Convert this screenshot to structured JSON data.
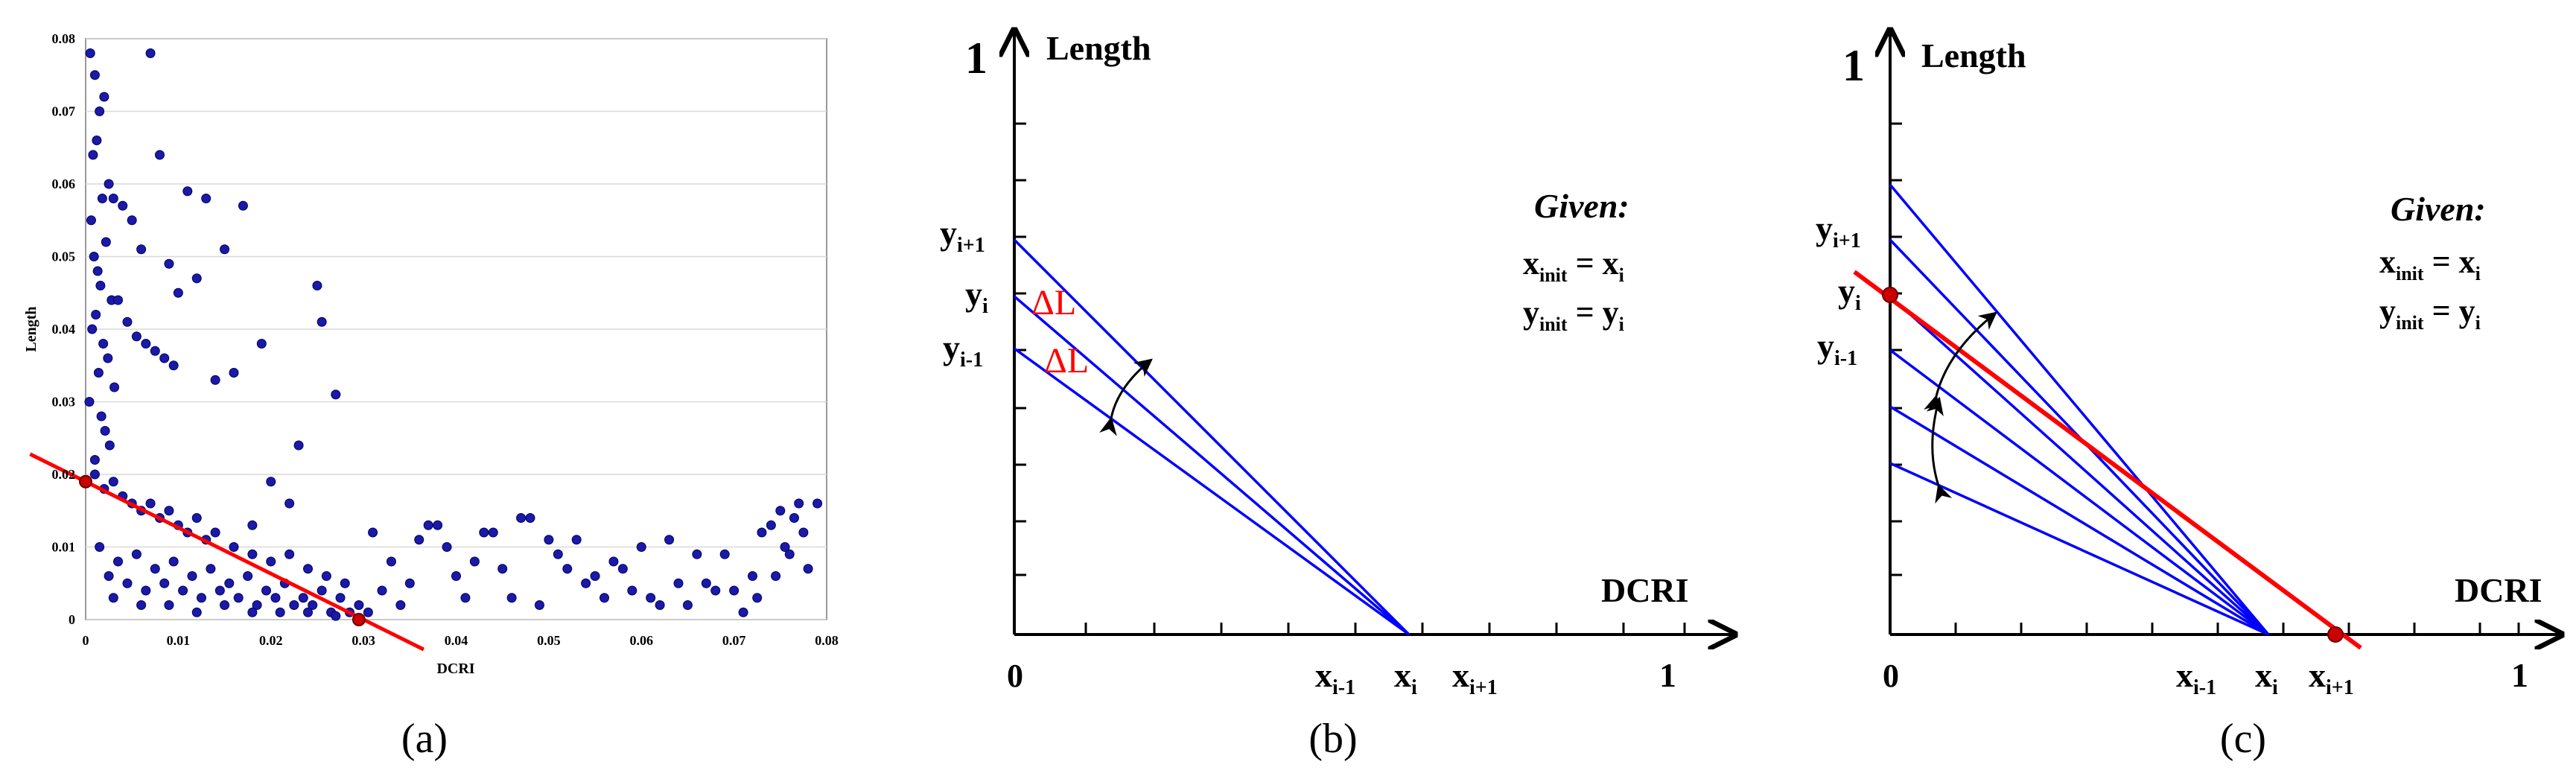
{
  "colors": {
    "points": "#1a1aa6",
    "point_edge": "#000066",
    "blue_line": "#0000ff",
    "red_line": "#ff0000",
    "red_point": "#cc0000",
    "axis": "#000000",
    "grid": "#d9d9d9",
    "label_red": "#ff0000"
  },
  "panels": {
    "a": {
      "caption": "(a)",
      "xlabel": "DCRI",
      "ylabel": "Length"
    },
    "b": {
      "caption": "(b)",
      "y_axis": {
        "label": "Length",
        "max_label": "1",
        "ticks": [
          {
            "base": "y",
            "sub": "i+1"
          },
          {
            "base": "y",
            "sub": "i"
          },
          {
            "base": "y",
            "sub": "i-1"
          }
        ]
      },
      "x_axis": {
        "label": "DCRI",
        "origin_label": "0",
        "max_label": "1",
        "ticks": [
          {
            "base": "x",
            "sub": "i-1"
          },
          {
            "base": "x",
            "sub": "i"
          },
          {
            "base": "x",
            "sub": "i+1"
          }
        ]
      },
      "delta_labels": [
        "ΔL",
        "ΔL"
      ],
      "given": {
        "title": "Given:",
        "lines": [
          {
            "lhs_base": "x",
            "lhs_sub": "init",
            "rhs_base": "x",
            "rhs_sub": "i"
          },
          {
            "lhs_base": "y",
            "lhs_sub": "init",
            "rhs_base": "y",
            "rhs_sub": "i"
          }
        ]
      }
    },
    "c": {
      "caption": "(c)",
      "y_axis": {
        "label": "Length",
        "max_label": "1",
        "ticks": [
          {
            "base": "y",
            "sub": "i+1"
          },
          {
            "base": "y",
            "sub": "i"
          },
          {
            "base": "y",
            "sub": "i-1"
          }
        ]
      },
      "x_axis": {
        "label": "DCRI",
        "origin_label": "0",
        "max_label": "1",
        "ticks": [
          {
            "base": "x",
            "sub": "i-1"
          },
          {
            "base": "x",
            "sub": "i"
          },
          {
            "base": "x",
            "sub": "i+1"
          }
        ]
      },
      "given": {
        "title": "Given:",
        "lines": [
          {
            "lhs_base": "x",
            "lhs_sub": "init",
            "rhs_base": "x",
            "rhs_sub": "i"
          },
          {
            "lhs_base": "y",
            "lhs_sub": "init",
            "rhs_base": "y",
            "rhs_sub": "i"
          }
        ]
      }
    }
  },
  "chart_data": [
    {
      "type": "scatter",
      "panel": "a",
      "title": "",
      "xlabel": "DCRI",
      "ylabel": "Length",
      "xlim": [
        0,
        0.08
      ],
      "ylim": [
        0,
        0.08
      ],
      "x_ticks": [
        "0",
        "0.01",
        "0.02",
        "0.03",
        "0.04",
        "0.05",
        "0.06",
        "0.07",
        "0.08"
      ],
      "y_ticks": [
        "0",
        "0.01",
        "0.02",
        "0.03",
        "0.04",
        "0.05",
        "0.06",
        "0.07",
        "0.08"
      ],
      "grid": true,
      "series": [
        {
          "x": [
            0.0005,
            0.001,
            0.0015,
            0.002,
            0.0012,
            0.0008,
            0.0025,
            0.0018,
            0.0006,
            0.0022,
            0.0009,
            0.0013,
            0.0016,
            0.0028,
            0.0011,
            0.0007,
            0.0019,
            0.0024,
            0.0014,
            0.0031,
            0.0004,
            0.0017,
            0.0021,
            0.0026,
            0.001,
            0.007,
            0.003,
            0.004,
            0.005,
            0.006,
            0.008,
            0.009,
            0.011,
            0.013,
            0.017,
            0.015,
            0.012,
            0.01,
            0.0035,
            0.0045,
            0.0055,
            0.0065,
            0.0075,
            0.0085,
            0.0095,
            0.014,
            0.016,
            0.019,
            0.023,
            0.025,
            0.0255,
            0.027,
            0.022,
            0.02,
            0.018,
            0.001,
            0.002,
            0.003,
            0.004,
            0.005,
            0.006,
            0.007,
            0.008,
            0.009,
            0.01,
            0.011,
            0.012,
            0.013,
            0.014,
            0.016,
            0.018,
            0.02,
            0.022,
            0.024,
            0.026,
            0.028,
            0.0015,
            0.0035,
            0.0055,
            0.0075,
            0.0095,
            0.0115,
            0.0135,
            0.0155,
            0.0175,
            0.0195,
            0.0215,
            0.0235,
            0.0255,
            0.0275,
            0.0295,
            0.0025,
            0.0045,
            0.0065,
            0.0085,
            0.0105,
            0.0125,
            0.0145,
            0.0165,
            0.0185,
            0.0205,
            0.0225,
            0.0245,
            0.0265,
            0.0285,
            0.0305,
            0.003,
            0.006,
            0.009,
            0.012,
            0.015,
            0.018,
            0.021,
            0.024,
            0.027,
            0.031,
            0.033,
            0.035,
            0.037,
            0.039,
            0.041,
            0.043,
            0.045,
            0.047,
            0.049,
            0.051,
            0.053,
            0.055,
            0.057,
            0.059,
            0.061,
            0.063,
            0.065,
            0.067,
            0.069,
            0.071,
            0.073,
            0.075,
            0.077,
            0.079,
            0.032,
            0.036,
            0.04,
            0.044,
            0.048,
            0.052,
            0.056,
            0.06,
            0.064,
            0.068,
            0.072,
            0.076,
            0.034,
            0.038,
            0.042,
            0.046,
            0.05,
            0.054,
            0.058,
            0.062,
            0.066,
            0.07,
            0.074,
            0.078,
            0.0775,
            0.0765,
            0.0755,
            0.0745,
            0.0725
          ],
          "y": [
            0.078,
            0.075,
            0.07,
            0.072,
            0.066,
            0.064,
            0.06,
            0.058,
            0.055,
            0.052,
            0.05,
            0.048,
            0.046,
            0.044,
            0.042,
            0.04,
            0.038,
            0.036,
            0.034,
            0.032,
            0.03,
            0.028,
            0.026,
            0.024,
            0.022,
            0.078,
            0.058,
            0.057,
            0.055,
            0.051,
            0.064,
            0.049,
            0.059,
            0.058,
            0.057,
            0.051,
            0.047,
            0.045,
            0.044,
            0.041,
            0.039,
            0.038,
            0.037,
            0.036,
            0.035,
            0.033,
            0.034,
            0.038,
            0.024,
            0.046,
            0.041,
            0.031,
            0.016,
            0.019,
            0.013,
            0.02,
            0.018,
            0.019,
            0.017,
            0.016,
            0.015,
            0.016,
            0.014,
            0.015,
            0.013,
            0.012,
            0.014,
            0.011,
            0.012,
            0.01,
            0.009,
            0.008,
            0.009,
            0.007,
            0.006,
            0.005,
            0.01,
            0.008,
            0.009,
            0.007,
            0.008,
            0.006,
            0.007,
            0.005,
            0.006,
            0.004,
            0.005,
            0.003,
            0.004,
            0.003,
            0.002,
            0.006,
            0.005,
            0.004,
            0.005,
            0.004,
            0.003,
            0.004,
            0.003,
            0.002,
            0.003,
            0.002,
            0.002,
            0.001,
            0.001,
            0.001,
            0.003,
            0.002,
            0.002,
            0.001,
            0.002,
            0.001,
            0.001,
            0.001,
            0.0005,
            0.012,
            0.008,
            0.005,
            0.013,
            0.01,
            0.003,
            0.012,
            0.007,
            0.014,
            0.002,
            0.009,
            0.011,
            0.006,
            0.008,
            0.004,
            0.003,
            0.011,
            0.002,
            0.005,
            0.009,
            0.001,
            0.012,
            0.015,
            0.016,
            0.016,
            0.004,
            0.011,
            0.006,
            0.012,
            0.014,
            0.007,
            0.003,
            0.01,
            0.005,
            0.004,
            0.006,
            0.009,
            0.002,
            0.013,
            0.008,
            0.003,
            0.011,
            0.005,
            0.007,
            0.002,
            0.009,
            0.004,
            0.013,
            0.007,
            0.012,
            0.014,
            0.01,
            0.006,
            0.003
          ]
        }
      ],
      "fit_line": {
        "x": [
          0,
          0.03
        ],
        "y": [
          0.019,
          0
        ]
      },
      "highlighted_points": [
        {
          "x": 0,
          "y": 0.019
        },
        {
          "x": 0.0295,
          "y": 0
        }
      ]
    }
  ]
}
